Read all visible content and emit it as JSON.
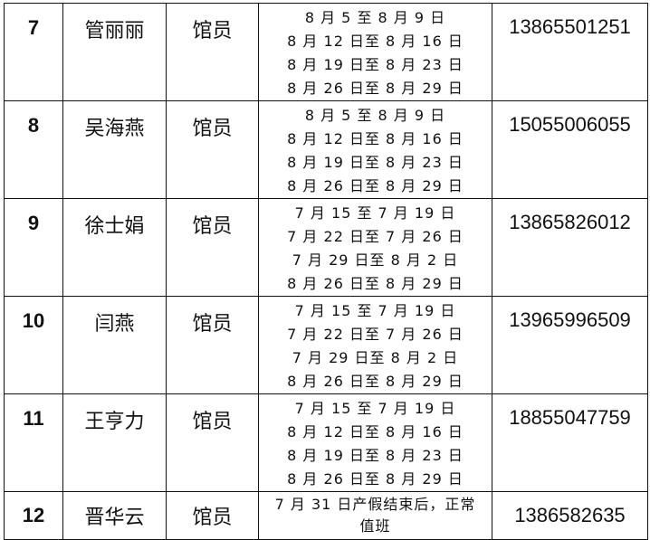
{
  "rows": [
    {
      "no": "7",
      "name": "管丽丽",
      "role": "馆员",
      "dates": [
        "8 月 5 至 8 月 9 日",
        "8 月 12 日至 8 月 16 日",
        "8 月 19 日至 8 月 23 日",
        "8 月 26 日至 8 月 29 日"
      ],
      "phone": "13865501251"
    },
    {
      "no": "8",
      "name": "吴海燕",
      "role": "馆员",
      "dates": [
        "8 月 5 至 8 月 9 日",
        "8 月 12 日至 8 月 16 日",
        "8 月 19 日至 8 月 23 日",
        "8 月 26 日至 8 月 29 日"
      ],
      "phone": "15055006055"
    },
    {
      "no": "9",
      "name": "徐士娟",
      "role": "馆员",
      "dates": [
        "7 月 15 至 7 月 19 日",
        "7 月 22 日至 7 月 26 日",
        "7 月 29 日至 8 月 2 日",
        "8 月 26 日至 8 月 29 日"
      ],
      "phone": "13865826012"
    },
    {
      "no": "10",
      "name": "闫燕",
      "role": "馆员",
      "dates": [
        "7 月 15 至 7 月 19 日",
        "7 月 22 日至 7 月 26 日",
        "7 月 29 日至 8 月 2 日",
        "8 月 26 日至 8 月 29 日"
      ],
      "phone": "13965996509"
    },
    {
      "no": "11",
      "name": "王亨力",
      "role": "馆员",
      "dates": [
        "7 月 15 至 7 月 19 日",
        "8 月 12 日至 8 月 16 日",
        "8 月 19 日至 8 月 23 日",
        "8 月 26 日至 8 月 29 日"
      ],
      "phone": "18855047759"
    },
    {
      "no": "12",
      "name": "晋华云",
      "role": "馆员",
      "dates": [
        "7 月 31 日产假结束后，正常",
        "值班"
      ],
      "phone": "1386582635"
    }
  ]
}
